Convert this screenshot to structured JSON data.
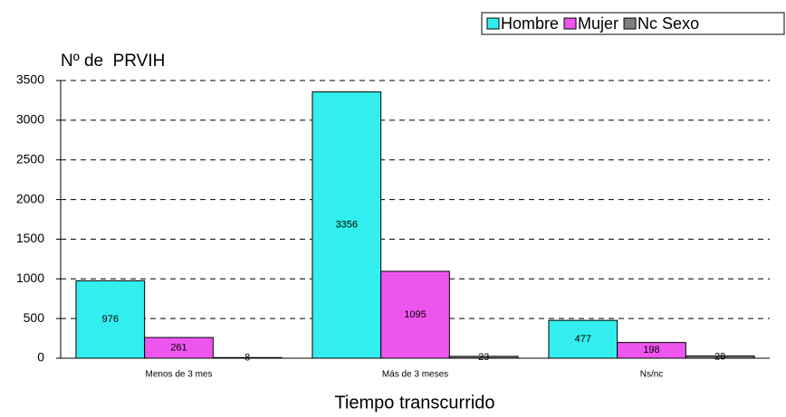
{
  "chart_data": {
    "type": "bar",
    "y_axis_label": "Nº de  PRVIH",
    "x_axis_label": "Tiempo transcurrido",
    "categories": [
      "Menos de 3 mes",
      "Más de 3 meses",
      "Ns/nc"
    ],
    "series": [
      {
        "name": "Hombre",
        "color": "#33eeee",
        "values": [
          976,
          3356,
          477
        ]
      },
      {
        "name": "Mujer",
        "color": "#ee55ee",
        "values": [
          261,
          1095,
          198
        ]
      },
      {
        "name": "Nc Sexo",
        "color": "#808080",
        "values": [
          8,
          23,
          28
        ]
      }
    ],
    "ylim": [
      0,
      3500
    ],
    "yticks": [
      0,
      500,
      1000,
      1500,
      2000,
      2500,
      3000,
      3500
    ],
    "grid": true,
    "legend": "top-right"
  }
}
